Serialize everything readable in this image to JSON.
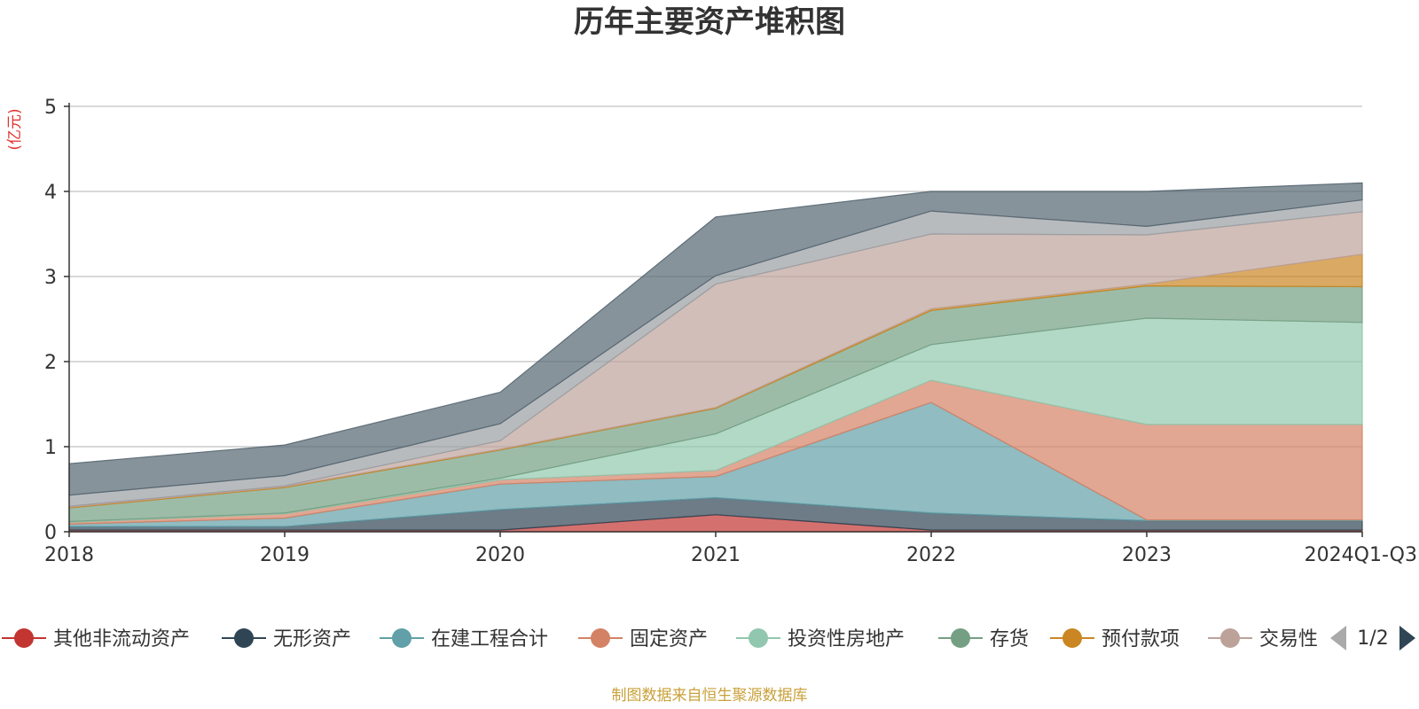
{
  "colors": {
    "other_noncurrent": "#c23531",
    "intangible": "#2f4554",
    "construction": "#61a0a8",
    "fixed": "#d48265",
    "investment_property": "#91c7ae",
    "inventory": "#749f83",
    "prepayment": "#ca8622",
    "trading": "#bda29a",
    "s9": "#9a9ea3",
    "s10": "#546570"
  },
  "chart_data": {
    "type": "area",
    "stacked": true,
    "title": "历年主要资产堆积图",
    "ylabel": "(亿元)",
    "ylim": [
      0,
      5
    ],
    "yticks": [
      0,
      1,
      2,
      3,
      4,
      5
    ],
    "grid": true,
    "categories": [
      "2018",
      "2019",
      "2020",
      "2021",
      "2022",
      "2023",
      "2024Q1-Q3"
    ],
    "series": [
      {
        "name": "其他非流动资产",
        "color_key": "other_noncurrent",
        "values": [
          0.02,
          0.02,
          0.02,
          0.2,
          0.02,
          0.02,
          0.02
        ]
      },
      {
        "name": "无形资产",
        "color_key": "intangible",
        "values": [
          0.04,
          0.04,
          0.24,
          0.2,
          0.2,
          0.11,
          0.11
        ]
      },
      {
        "name": "在建工程合计",
        "color_key": "construction",
        "values": [
          0.03,
          0.1,
          0.3,
          0.25,
          1.3,
          0.01,
          0.01
        ]
      },
      {
        "name": "固定资产",
        "color_key": "fixed",
        "values": [
          0.02,
          0.05,
          0.05,
          0.07,
          0.26,
          1.12,
          1.12
        ]
      },
      {
        "name": "投资性房地产",
        "color_key": "investment_property",
        "values": [
          0.01,
          0.01,
          0.02,
          0.43,
          0.42,
          1.25,
          1.2
        ]
      },
      {
        "name": "存货",
        "color_key": "inventory",
        "values": [
          0.16,
          0.3,
          0.33,
          0.3,
          0.4,
          0.38,
          0.42
        ]
      },
      {
        "name": "预付款项",
        "color_key": "prepayment",
        "values": [
          0.01,
          0.01,
          0.01,
          0.01,
          0.02,
          0.02,
          0.38
        ]
      },
      {
        "name": "交易性",
        "color_key": "trading",
        "values": [
          0.01,
          0.01,
          0.1,
          1.45,
          0.88,
          0.58,
          0.5
        ]
      },
      {
        "color_key": "s9",
        "values": [
          0.13,
          0.12,
          0.2,
          0.1,
          0.27,
          0.1,
          0.14
        ]
      },
      {
        "color_key": "s10",
        "values": [
          0.37,
          0.36,
          0.37,
          0.69,
          0.23,
          0.41,
          0.2
        ]
      }
    ]
  },
  "legend": {
    "page": "1/2",
    "items": [
      {
        "label": "其他非流动资产",
        "color_key": "other_noncurrent"
      },
      {
        "label": "无形资产",
        "color_key": "intangible"
      },
      {
        "label": "在建工程合计",
        "color_key": "construction"
      },
      {
        "label": "固定资产",
        "color_key": "fixed"
      },
      {
        "label": "投资性房地产",
        "color_key": "investment_property"
      },
      {
        "label": "存货",
        "color_key": "inventory"
      },
      {
        "label": "预付款项",
        "color_key": "prepayment"
      },
      {
        "label": "交易性",
        "color_key": "trading"
      }
    ]
  },
  "footer": {
    "source": "制图数据来自恒生聚源数据库"
  }
}
